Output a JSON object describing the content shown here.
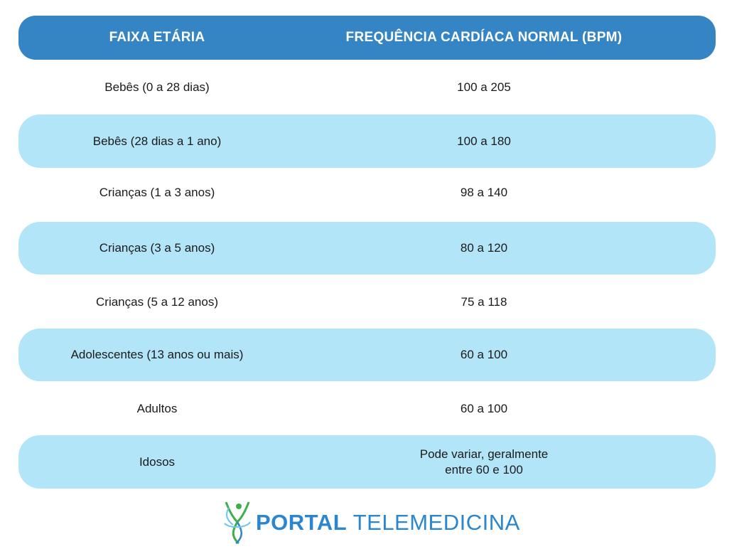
{
  "table": {
    "headers": [
      "FAIXA ETÁRIA",
      "FREQUÊNCIA CARDÍACA NORMAL (BPM)"
    ],
    "rows": [
      {
        "age": "Bebês (0 a 28 dias)",
        "bpm": "100 a 205",
        "banded": false
      },
      {
        "age": "Bebês (28 dias a 1 ano)",
        "bpm": "100 a 180",
        "banded": true
      },
      {
        "age": "Crianças (1 a 3 anos)",
        "bpm": "98 a 140",
        "banded": false
      },
      {
        "age": "Crianças (3 a 5 anos)",
        "bpm": "80 a 120",
        "banded": true
      },
      {
        "age": "Crianças (5 a 12 anos)",
        "bpm": "75 a 118",
        "banded": false
      },
      {
        "age": "Adolescentes (13 anos ou mais)",
        "bpm": "60 a 100",
        "banded": true
      },
      {
        "age": "Adultos",
        "bpm": "60 a 100",
        "banded": false
      },
      {
        "age": "Idosos",
        "bpm": "Pode variar, geralmente entre 60 e 100",
        "bpm_line1": "Pode variar, geralmente",
        "bpm_line2": "entre 60 e 100",
        "banded": true
      }
    ]
  },
  "logo": {
    "bold": "PORTAL",
    "light": "TELEMEDICINA",
    "icon": "person-figure-logo-icon"
  },
  "colors": {
    "header": "#3585c4",
    "band": "#b3e5f8",
    "logo_blue": "#2a86cf",
    "logo_green": "#3fae49"
  }
}
